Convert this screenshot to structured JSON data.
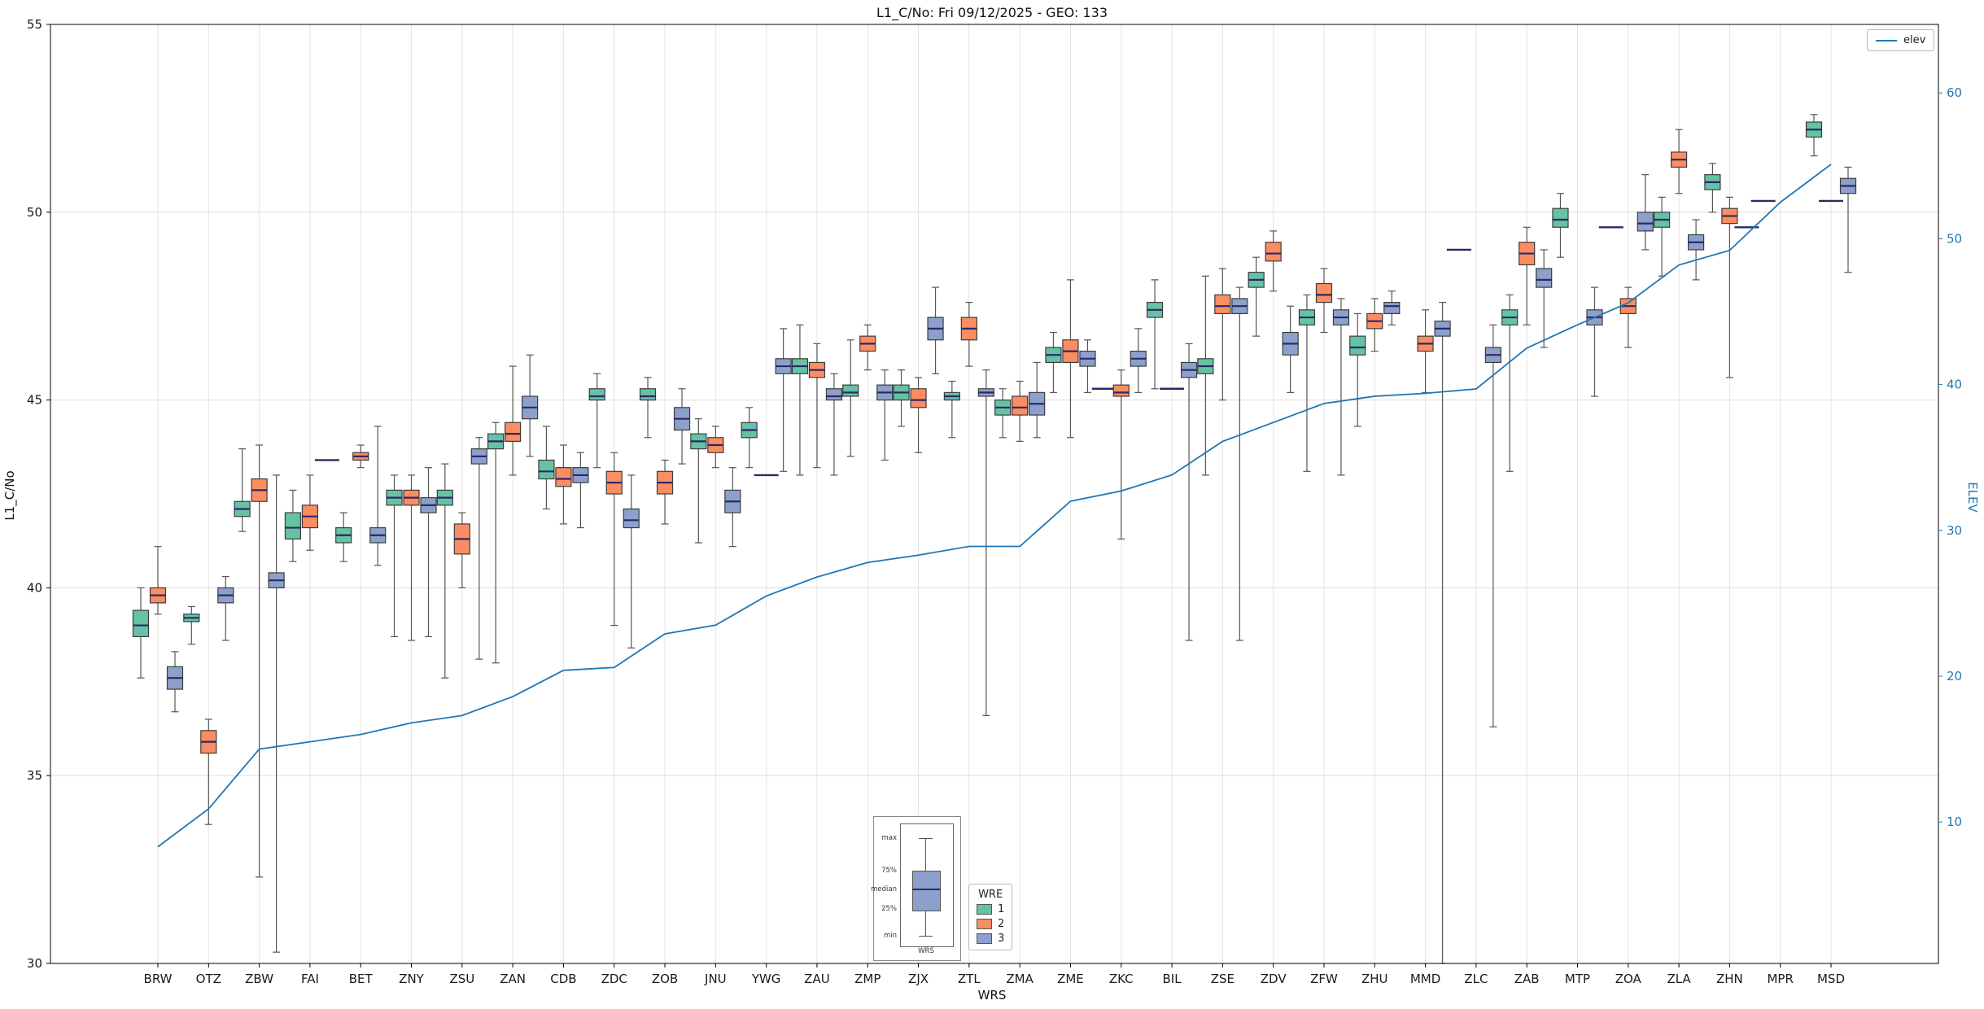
{
  "chart_data": {
    "type": "boxplot",
    "title": "L1_C/No: Fri 09/12/2025 - GEO: 133",
    "xlabel": "WRS",
    "ylabel_left": "L1_C/No",
    "ylabel_right": "ELEV",
    "ylim_left": [
      30,
      55
    ],
    "ylim_right": [
      0.3,
      64.7
    ],
    "yticks_left": [
      30,
      35,
      40,
      45,
      50,
      55
    ],
    "yticks_right": [
      10,
      20,
      30,
      40,
      50,
      60
    ],
    "grid": true,
    "median_color": "#2a2a66",
    "box_edge_color": "#3c3c3c",
    "whisker_color": "#555555",
    "grid_color": "#dcdcdc",
    "categories": [
      "BRW",
      "OTZ",
      "ZBW",
      "FAI",
      "BET",
      "ZNY",
      "ZSU",
      "ZAN",
      "CDB",
      "ZDC",
      "ZOB",
      "JNU",
      "YWG",
      "ZAU",
      "ZMP",
      "ZJX",
      "ZTL",
      "ZMA",
      "ZME",
      "ZKC",
      "BIL",
      "ZSE",
      "ZDV",
      "ZFW",
      "ZHU",
      "MMD",
      "ZLC",
      "ZAB",
      "MTP",
      "ZOA",
      "ZLA",
      "ZHN",
      "MPR",
      "MSD"
    ],
    "series_legend": {
      "title": "WRE",
      "entries": [
        {
          "label": "1",
          "color": "#66c2a5"
        },
        {
          "label": "2",
          "color": "#fc8d62"
        },
        {
          "label": "3",
          "color": "#8da0cb"
        }
      ]
    },
    "line_series": {
      "name": "elev",
      "color": "#1f77b4",
      "axis": "right",
      "values": [
        8.3,
        10.9,
        15.0,
        15.5,
        16.0,
        16.8,
        17.3,
        18.6,
        20.4,
        20.6,
        22.9,
        23.5,
        25.5,
        26.8,
        27.8,
        28.3,
        28.9,
        28.9,
        32.0,
        32.7,
        33.8,
        36.1,
        37.4,
        38.7,
        39.2,
        39.4,
        39.7,
        42.5,
        44.1,
        45.6,
        48.2,
        49.2,
        52.5,
        55.1
      ]
    },
    "box_groups": [
      [
        {
          "w": 1,
          "med": 39.0,
          "q1": 38.7,
          "q3": 39.4,
          "lo": 37.6,
          "hi": 40.0
        },
        {
          "w": 2,
          "med": 39.8,
          "q1": 39.6,
          "q3": 40.0,
          "lo": 39.3,
          "hi": 41.1
        },
        {
          "w": 3,
          "med": 37.6,
          "q1": 37.3,
          "q3": 37.9,
          "lo": 36.7,
          "hi": 38.3
        }
      ],
      [
        {
          "w": 1,
          "med": 39.2,
          "q1": 39.1,
          "q3": 39.3,
          "lo": 38.5,
          "hi": 39.5
        },
        {
          "w": 2,
          "med": 35.9,
          "q1": 35.6,
          "q3": 36.2,
          "lo": 33.7,
          "hi": 36.5
        },
        {
          "w": 3,
          "med": 39.8,
          "q1": 39.6,
          "q3": 40.0,
          "lo": 38.6,
          "hi": 40.3
        }
      ],
      [
        {
          "w": 1,
          "med": 42.1,
          "q1": 41.9,
          "q3": 42.3,
          "lo": 41.5,
          "hi": 43.7
        },
        {
          "w": 2,
          "med": 42.6,
          "q1": 42.3,
          "q3": 42.9,
          "lo": 32.3,
          "hi": 43.8
        },
        {
          "w": 3,
          "med": 40.2,
          "q1": 40.0,
          "q3": 40.4,
          "lo": 30.3,
          "hi": 43.0
        }
      ],
      [
        {
          "w": 1,
          "med": 41.6,
          "q1": 41.3,
          "q3": 42.0,
          "lo": 40.7,
          "hi": 42.6
        },
        {
          "w": 2,
          "med": 41.9,
          "q1": 41.6,
          "q3": 42.2,
          "lo": 41.0,
          "hi": 43.0
        },
        {
          "w": 3,
          "med": 43.4,
          "q1": 43.4,
          "q3": 43.4,
          "lo": 43.4,
          "hi": 43.4
        }
      ],
      [
        {
          "w": 1,
          "med": 41.4,
          "q1": 41.2,
          "q3": 41.6,
          "lo": 40.7,
          "hi": 42.0
        },
        {
          "w": 2,
          "med": 43.5,
          "q1": 43.4,
          "q3": 43.6,
          "lo": 43.2,
          "hi": 43.8
        },
        {
          "w": 3,
          "med": 41.4,
          "q1": 41.2,
          "q3": 41.6,
          "lo": 40.6,
          "hi": 44.3
        }
      ],
      [
        {
          "w": 1,
          "med": 42.4,
          "q1": 42.2,
          "q3": 42.6,
          "lo": 38.7,
          "hi": 43.0
        },
        {
          "w": 2,
          "med": 42.4,
          "q1": 42.2,
          "q3": 42.6,
          "lo": 38.6,
          "hi": 43.0
        },
        {
          "w": 3,
          "med": 42.2,
          "q1": 42.0,
          "q3": 42.4,
          "lo": 38.7,
          "hi": 43.2
        }
      ],
      [
        {
          "w": 1,
          "med": 42.4,
          "q1": 42.2,
          "q3": 42.6,
          "lo": 37.6,
          "hi": 43.3
        },
        {
          "w": 2,
          "med": 41.3,
          "q1": 40.9,
          "q3": 41.7,
          "lo": 40.0,
          "hi": 42.0
        },
        {
          "w": 3,
          "med": 43.5,
          "q1": 43.3,
          "q3": 43.7,
          "lo": 38.1,
          "hi": 44.0
        }
      ],
      [
        {
          "w": 1,
          "med": 43.9,
          "q1": 43.7,
          "q3": 44.1,
          "lo": 38.0,
          "hi": 44.4
        },
        {
          "w": 2,
          "med": 44.1,
          "q1": 43.9,
          "q3": 44.4,
          "lo": 43.0,
          "hi": 45.9
        },
        {
          "w": 3,
          "med": 44.8,
          "q1": 44.5,
          "q3": 45.1,
          "lo": 43.5,
          "hi": 46.2
        }
      ],
      [
        {
          "w": 1,
          "med": 43.1,
          "q1": 42.9,
          "q3": 43.4,
          "lo": 42.1,
          "hi": 44.3
        },
        {
          "w": 2,
          "med": 42.9,
          "q1": 42.7,
          "q3": 43.2,
          "lo": 41.7,
          "hi": 43.8
        },
        {
          "w": 3,
          "med": 43.0,
          "q1": 42.8,
          "q3": 43.2,
          "lo": 41.6,
          "hi": 43.6
        }
      ],
      [
        {
          "w": 1,
          "med": 45.1,
          "q1": 45.0,
          "q3": 45.3,
          "lo": 43.2,
          "hi": 45.7
        },
        {
          "w": 2,
          "med": 42.8,
          "q1": 42.5,
          "q3": 43.1,
          "lo": 39.0,
          "hi": 43.6
        },
        {
          "w": 3,
          "med": 41.8,
          "q1": 41.6,
          "q3": 42.1,
          "lo": 38.4,
          "hi": 43.0
        }
      ],
      [
        {
          "w": 1,
          "med": 45.1,
          "q1": 45.0,
          "q3": 45.3,
          "lo": 44.0,
          "hi": 45.6
        },
        {
          "w": 2,
          "med": 42.8,
          "q1": 42.5,
          "q3": 43.1,
          "lo": 41.7,
          "hi": 43.4
        },
        {
          "w": 3,
          "med": 44.5,
          "q1": 44.2,
          "q3": 44.8,
          "lo": 43.3,
          "hi": 45.3
        }
      ],
      [
        {
          "w": 1,
          "med": 43.9,
          "q1": 43.7,
          "q3": 44.1,
          "lo": 41.2,
          "hi": 44.5
        },
        {
          "w": 2,
          "med": 43.8,
          "q1": 43.6,
          "q3": 44.0,
          "lo": 43.2,
          "hi": 44.3
        },
        {
          "w": 3,
          "med": 42.3,
          "q1": 42.0,
          "q3": 42.6,
          "lo": 41.1,
          "hi": 43.2
        }
      ],
      [
        {
          "w": 1,
          "med": 44.2,
          "q1": 44.0,
          "q3": 44.4,
          "lo": 43.2,
          "hi": 44.8
        },
        {
          "w": 2,
          "med": 43.0,
          "q1": 43.0,
          "q3": 43.0,
          "lo": 43.0,
          "hi": 43.0
        },
        {
          "w": 3,
          "med": 45.9,
          "q1": 45.7,
          "q3": 46.1,
          "lo": 43.1,
          "hi": 46.9
        }
      ],
      [
        {
          "w": 1,
          "med": 45.9,
          "q1": 45.7,
          "q3": 46.1,
          "lo": 43.0,
          "hi": 47.0
        },
        {
          "w": 2,
          "med": 45.8,
          "q1": 45.6,
          "q3": 46.0,
          "lo": 43.2,
          "hi": 46.5
        },
        {
          "w": 3,
          "med": 45.1,
          "q1": 45.0,
          "q3": 45.3,
          "lo": 43.0,
          "hi": 45.7
        }
      ],
      [
        {
          "w": 1,
          "med": 45.2,
          "q1": 45.1,
          "q3": 45.4,
          "lo": 43.5,
          "hi": 46.6
        },
        {
          "w": 2,
          "med": 46.5,
          "q1": 46.3,
          "q3": 46.7,
          "lo": 45.8,
          "hi": 47.0
        },
        {
          "w": 3,
          "med": 45.2,
          "q1": 45.0,
          "q3": 45.4,
          "lo": 43.4,
          "hi": 45.8
        }
      ],
      [
        {
          "w": 1,
          "med": 45.2,
          "q1": 45.0,
          "q3": 45.4,
          "lo": 44.3,
          "hi": 45.8
        },
        {
          "w": 2,
          "med": 45.0,
          "q1": 44.8,
          "q3": 45.3,
          "lo": 43.6,
          "hi": 45.6
        },
        {
          "w": 3,
          "med": 46.9,
          "q1": 46.6,
          "q3": 47.2,
          "lo": 45.7,
          "hi": 48.0
        }
      ],
      [
        {
          "w": 1,
          "med": 45.1,
          "q1": 45.0,
          "q3": 45.2,
          "lo": 44.0,
          "hi": 45.5
        },
        {
          "w": 2,
          "med": 46.9,
          "q1": 46.6,
          "q3": 47.2,
          "lo": 45.9,
          "hi": 47.6
        },
        {
          "w": 3,
          "med": 45.2,
          "q1": 45.1,
          "q3": 45.3,
          "lo": 36.6,
          "hi": 45.8
        }
      ],
      [
        {
          "w": 1,
          "med": 44.8,
          "q1": 44.6,
          "q3": 45.0,
          "lo": 44.0,
          "hi": 45.3
        },
        {
          "w": 2,
          "med": 44.8,
          "q1": 44.6,
          "q3": 45.1,
          "lo": 43.9,
          "hi": 45.5
        },
        {
          "w": 3,
          "med": 44.9,
          "q1": 44.6,
          "q3": 45.2,
          "lo": 44.0,
          "hi": 46.0
        }
      ],
      [
        {
          "w": 1,
          "med": 46.2,
          "q1": 46.0,
          "q3": 46.4,
          "lo": 45.2,
          "hi": 46.8
        },
        {
          "w": 2,
          "med": 46.3,
          "q1": 46.0,
          "q3": 46.6,
          "lo": 44.0,
          "hi": 48.2
        },
        {
          "w": 3,
          "med": 46.1,
          "q1": 45.9,
          "q3": 46.3,
          "lo": 45.2,
          "hi": 46.6
        }
      ],
      [
        {
          "w": 1,
          "med": 45.3,
          "q1": 45.3,
          "q3": 45.3,
          "lo": 45.3,
          "hi": 45.3
        },
        {
          "w": 2,
          "med": 45.2,
          "q1": 45.1,
          "q3": 45.4,
          "lo": 41.3,
          "hi": 45.8
        },
        {
          "w": 3,
          "med": 46.1,
          "q1": 45.9,
          "q3": 46.3,
          "lo": 45.2,
          "hi": 46.9
        }
      ],
      [
        {
          "w": 1,
          "med": 47.4,
          "q1": 47.2,
          "q3": 47.6,
          "lo": 45.3,
          "hi": 48.2
        },
        {
          "w": 2,
          "med": 45.3,
          "q1": 45.3,
          "q3": 45.3,
          "lo": 45.3,
          "hi": 45.3
        },
        {
          "w": 3,
          "med": 45.8,
          "q1": 45.6,
          "q3": 46.0,
          "lo": 38.6,
          "hi": 46.5
        }
      ],
      [
        {
          "w": 1,
          "med": 45.9,
          "q1": 45.7,
          "q3": 46.1,
          "lo": 43.0,
          "hi": 48.3
        },
        {
          "w": 2,
          "med": 47.5,
          "q1": 47.3,
          "q3": 47.8,
          "lo": 45.0,
          "hi": 48.5
        },
        {
          "w": 3,
          "med": 47.5,
          "q1": 47.3,
          "q3": 47.7,
          "lo": 38.6,
          "hi": 48.0
        }
      ],
      [
        {
          "w": 1,
          "med": 48.2,
          "q1": 48.0,
          "q3": 48.4,
          "lo": 46.7,
          "hi": 48.8
        },
        {
          "w": 2,
          "med": 48.9,
          "q1": 48.7,
          "q3": 49.2,
          "lo": 47.9,
          "hi": 49.5
        },
        {
          "w": 3,
          "med": 46.5,
          "q1": 46.2,
          "q3": 46.8,
          "lo": 45.2,
          "hi": 47.5
        }
      ],
      [
        {
          "w": 1,
          "med": 47.2,
          "q1": 47.0,
          "q3": 47.4,
          "lo": 43.1,
          "hi": 47.8
        },
        {
          "w": 2,
          "med": 47.8,
          "q1": 47.6,
          "q3": 48.1,
          "lo": 46.8,
          "hi": 48.5
        },
        {
          "w": 3,
          "med": 47.2,
          "q1": 47.0,
          "q3": 47.4,
          "lo": 43.0,
          "hi": 47.7
        }
      ],
      [
        {
          "w": 1,
          "med": 46.4,
          "q1": 46.2,
          "q3": 46.7,
          "lo": 44.3,
          "hi": 47.3
        },
        {
          "w": 2,
          "med": 47.1,
          "q1": 46.9,
          "q3": 47.3,
          "lo": 46.3,
          "hi": 47.7
        },
        {
          "w": 3,
          "med": 47.5,
          "q1": 47.3,
          "q3": 47.6,
          "lo": 47.0,
          "hi": 47.9
        }
      ],
      [
        {
          "w": 2,
          "med": 46.5,
          "q1": 46.3,
          "q3": 46.7,
          "lo": 45.2,
          "hi": 47.4
        },
        {
          "w": 3,
          "med": 46.9,
          "q1": 46.7,
          "q3": 47.1,
          "lo": 30.0,
          "hi": 47.6
        }
      ],
      [
        {
          "w": 1,
          "med": 49.0,
          "q1": 49.0,
          "q3": 49.0,
          "lo": 49.0,
          "hi": 49.0
        },
        {
          "w": 3,
          "med": 46.2,
          "q1": 46.0,
          "q3": 46.4,
          "lo": 36.3,
          "hi": 47.0
        }
      ],
      [
        {
          "w": 1,
          "med": 47.2,
          "q1": 47.0,
          "q3": 47.4,
          "lo": 43.1,
          "hi": 47.8
        },
        {
          "w": 2,
          "med": 48.9,
          "q1": 48.6,
          "q3": 49.2,
          "lo": 47.0,
          "hi": 49.6
        },
        {
          "w": 3,
          "med": 48.2,
          "q1": 48.0,
          "q3": 48.5,
          "lo": 46.4,
          "hi": 49.0
        }
      ],
      [
        {
          "w": 1,
          "med": 49.8,
          "q1": 49.6,
          "q3": 50.1,
          "lo": 48.8,
          "hi": 50.5
        },
        {
          "w": 3,
          "med": 47.2,
          "q1": 47.0,
          "q3": 47.4,
          "lo": 45.1,
          "hi": 48.0
        }
      ],
      [
        {
          "w": 1,
          "med": 49.6,
          "q1": 49.6,
          "q3": 49.6,
          "lo": 49.6,
          "hi": 49.6
        },
        {
          "w": 2,
          "med": 47.5,
          "q1": 47.3,
          "q3": 47.7,
          "lo": 46.4,
          "hi": 48.0
        },
        {
          "w": 3,
          "med": 49.7,
          "q1": 49.5,
          "q3": 50.0,
          "lo": 49.0,
          "hi": 51.0
        }
      ],
      [
        {
          "w": 1,
          "med": 49.8,
          "q1": 49.6,
          "q3": 50.0,
          "lo": 48.3,
          "hi": 50.4
        },
        {
          "w": 2,
          "med": 51.4,
          "q1": 51.2,
          "q3": 51.6,
          "lo": 50.5,
          "hi": 52.2
        },
        {
          "w": 3,
          "med": 49.2,
          "q1": 49.0,
          "q3": 49.4,
          "lo": 48.2,
          "hi": 49.8
        }
      ],
      [
        {
          "w": 1,
          "med": 50.8,
          "q1": 50.6,
          "q3": 51.0,
          "lo": 50.0,
          "hi": 51.3
        },
        {
          "w": 2,
          "med": 49.9,
          "q1": 49.7,
          "q3": 50.1,
          "lo": 45.6,
          "hi": 50.4
        },
        {
          "w": 3,
          "med": 49.6,
          "q1": 49.6,
          "q3": 49.6,
          "lo": 49.6,
          "hi": 49.6
        }
      ],
      [
        {
          "w": 1,
          "med": 50.3,
          "q1": 50.3,
          "q3": 50.3,
          "lo": 50.3,
          "hi": 50.3
        }
      ],
      [
        {
          "w": 1,
          "med": 52.2,
          "q1": 52.0,
          "q3": 52.4,
          "lo": 51.5,
          "hi": 52.6
        },
        {
          "w": 2,
          "med": 50.3,
          "q1": 50.3,
          "q3": 50.3,
          "lo": 50.3,
          "hi": 50.3
        },
        {
          "w": 3,
          "med": 50.7,
          "q1": 50.5,
          "q3": 50.9,
          "lo": 48.4,
          "hi": 51.2
        }
      ]
    ],
    "anatomy_inset": {
      "labels": [
        "max",
        "75%",
        "median",
        "25%",
        "min"
      ],
      "xlabel": "WRS"
    }
  }
}
